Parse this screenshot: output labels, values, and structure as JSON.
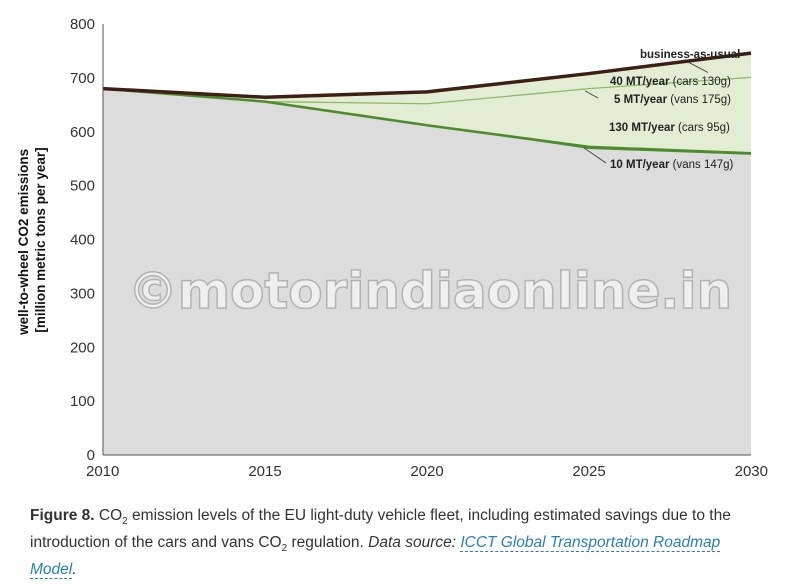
{
  "chart_data": {
    "type": "area",
    "x": [
      2010,
      2015,
      2020,
      2025,
      2030
    ],
    "xlim": [
      2010,
      2030
    ],
    "ylim": [
      0,
      800
    ],
    "yticks": [
      0,
      100,
      200,
      300,
      400,
      500,
      600,
      700,
      800
    ],
    "xticks": [
      2010,
      2015,
      2020,
      2025,
      2030
    ],
    "ylabel_line1": "well-to-wheel CO2 emissions",
    "ylabel_line2": "[million metric tons per year]",
    "grid": false,
    "series": [
      {
        "name": "business-as-usual",
        "values": [
          680,
          664,
          674,
          708,
          746
        ],
        "color": "#3d1f14"
      },
      {
        "name": "5 MT/year (vans 175g)",
        "values": [
          680,
          656,
          652,
          680,
          701
        ],
        "color": "#8fb86a"
      },
      {
        "name": "130 MT/year (cars 95g)",
        "values": [
          680,
          656,
          612,
          572,
          560
        ],
        "color": "#4e8a2e"
      },
      {
        "name": "10 MT/year (vans 147g)",
        "values": [
          680,
          656,
          612,
          568,
          557
        ],
        "color": "#4e8a2e"
      }
    ],
    "annotations": [
      {
        "label": "business-as-usual"
      },
      {
        "label_bold": "40 MT/year",
        "label_rest": " (cars 130g)"
      },
      {
        "label_bold": "5 MT/year",
        "label_rest": " (vans 175g)"
      },
      {
        "label_bold": "130 MT/year",
        "label_rest": " (cars 95g)"
      },
      {
        "label_bold": "10 MT/year",
        "label_rest": " (vans 147g)"
      }
    ],
    "colors": {
      "base_area": "#dcdcdc",
      "savings_area": "#e3edd4"
    }
  },
  "watermark": "©motorindiaonline.in",
  "caption": {
    "figure_label": "Figure 8.",
    "text_a": " CO",
    "sub_a": "2",
    "text_b": " emission levels of the EU light-duty vehicle fleet, including estimated savings due to the introduction of the cars and vans CO",
    "sub_b": "2",
    "text_c": " regulation. ",
    "source_prefix": "Data source: ",
    "source_link": "ICCT Global Transportation Roadmap Model",
    "source_end": "."
  }
}
